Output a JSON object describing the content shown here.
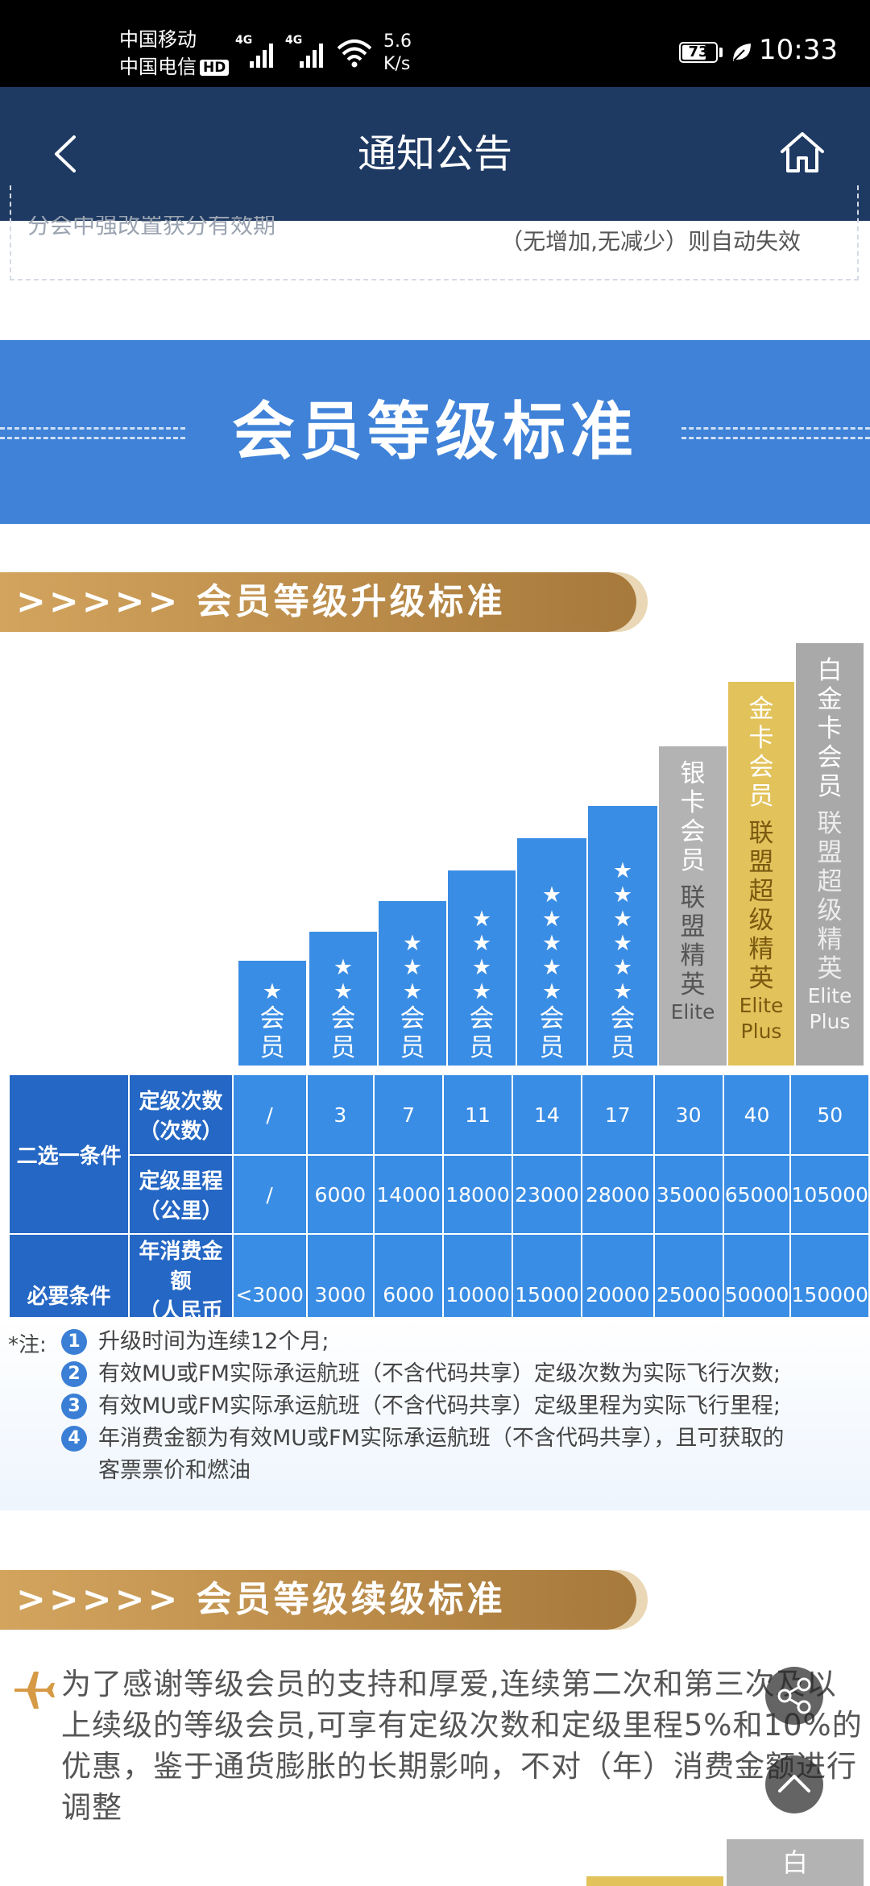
{
  "status_bar": {
    "carrier1": "中国移动",
    "carrier2": "中国电信",
    "hd_badge": "HD",
    "net1": "4G",
    "net2": "4G",
    "speed_value": "5.6",
    "speed_unit": "K/s",
    "battery": "73",
    "battery_level_percent": 73,
    "time": "10:33"
  },
  "navbar": {
    "title": "通知公告",
    "back_icon": "chevron-left-icon",
    "home_icon": "home-icon"
  },
  "top_card": {
    "cut_text": "分会中强改置获分有效期",
    "auto_fail": "（无增加,无减少）则自动失效"
  },
  "banner": {
    "title": "会员等级标准"
  },
  "upgrade_section": {
    "title": ">>>>> 会员等级升级标准"
  },
  "levels": [
    {
      "stars": 1,
      "label": "会员"
    },
    {
      "stars": 2,
      "label": "会员"
    },
    {
      "stars": 3,
      "label": "会员"
    },
    {
      "stars": 4,
      "label": "会员"
    },
    {
      "stars": 5,
      "label": "会员"
    },
    {
      "stars": 6,
      "label": "会员"
    },
    {
      "label": "银卡会员",
      "sub": "联盟精英",
      "eng1": "Elite",
      "eng2": ""
    },
    {
      "label": "金卡会员",
      "sub": "联盟超级精英",
      "eng1": "Elite",
      "eng2": "Plus"
    },
    {
      "label": "白金卡会员",
      "sub": "联盟超级精英",
      "eng1": "Elite",
      "eng2": "Plus"
    }
  ],
  "criteria": {
    "either_condition": "二选一条件",
    "required_condition": "必要条件",
    "rows": [
      {
        "label": "定级次数（次数）",
        "values": [
          "/",
          "3",
          "7",
          "11",
          "14",
          "17",
          "30",
          "40",
          "50"
        ]
      },
      {
        "label": "定级里程（公里）",
        "values": [
          "/",
          "6000",
          "14000",
          "18000",
          "23000",
          "28000",
          "35000",
          "65000",
          "105000"
        ]
      },
      {
        "label": "年消费金额（人民币元）",
        "values": [
          "<3000",
          "3000",
          "6000",
          "10000",
          "15000",
          "20000",
          "25000",
          "50000",
          "150000"
        ]
      }
    ],
    "row_labels": [
      [
        "定级次数",
        "（次数）"
      ],
      [
        "定级里程",
        "（公里）"
      ],
      [
        "年消费金额",
        "（人民币元）"
      ]
    ]
  },
  "notes": {
    "prefix": "*注:",
    "items": [
      {
        "num": "1",
        "text": "升级时间为连续12个月;"
      },
      {
        "num": "2",
        "text": "有效MU或FM实际承运航班（不含代码共享）定级次数为实际飞行次数;"
      },
      {
        "num": "3",
        "text": "有效MU或FM实际承运航班（不含代码共享）定级里程为实际飞行里程;"
      },
      {
        "num": "4",
        "text": "年消费金额为有效MU或FM实际承运航班（不含代码共享），且可获取的"
      }
    ],
    "item4_cont": "客票票价和燃油"
  },
  "renew_section": {
    "title": ">>>>> 会员等级续级标准",
    "text": "为了感谢等级会员的支持和厚爱,连续第二次和第三次及以上续级的等级会员,可享有定级次数和定级里程5%和10%的优惠，鉴于通货膨胀的长期影响，不对（年）消费金额进行调整"
  },
  "bottom_peek": {
    "plat_char": "白"
  },
  "colors": {
    "navbar": "#1e3a63",
    "banner": "#3f82d8",
    "level_blue": "#3a8de4",
    "silver": "#b3b3b3",
    "gold": "#e2c25a",
    "platinum": "#a9a9a9"
  }
}
